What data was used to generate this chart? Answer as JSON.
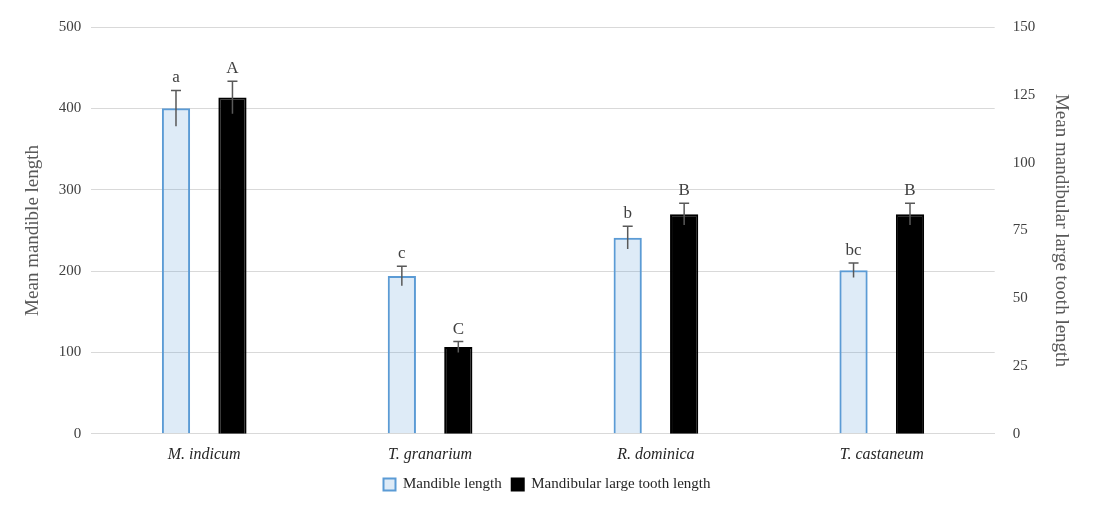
{
  "chart_data": {
    "type": "bar",
    "categories": [
      "M. indicum",
      "T. granarium",
      "R. dominica",
      "T. castaneum"
    ],
    "ylabel": "Mean mandible length",
    "y2label": "Mean mandibular large tooth length",
    "ylim": [
      0,
      500
    ],
    "yticks": [
      0,
      100,
      200,
      300,
      400,
      500
    ],
    "y2lim": [
      0,
      150
    ],
    "y2ticks": [
      0,
      25,
      50,
      75,
      100,
      125,
      150
    ],
    "grid": "y",
    "legend": "bottom",
    "series": [
      {
        "name": "Mandible length",
        "color": "#5b9bd5",
        "values": [
          400,
          194,
          241,
          201
        ],
        "errors": [
          22,
          12,
          14,
          9
        ],
        "value_labels": [
          "a",
          "c",
          "b",
          "bc"
        ]
      },
      {
        "name": "Mandibular large tooth length",
        "color": "#000000",
        "axis": "y2",
        "values": [
          124,
          32,
          81,
          81
        ],
        "errors": [
          6,
          2,
          4,
          4
        ],
        "value_labels": [
          "A",
          "C",
          "B",
          "B"
        ]
      }
    ]
  }
}
